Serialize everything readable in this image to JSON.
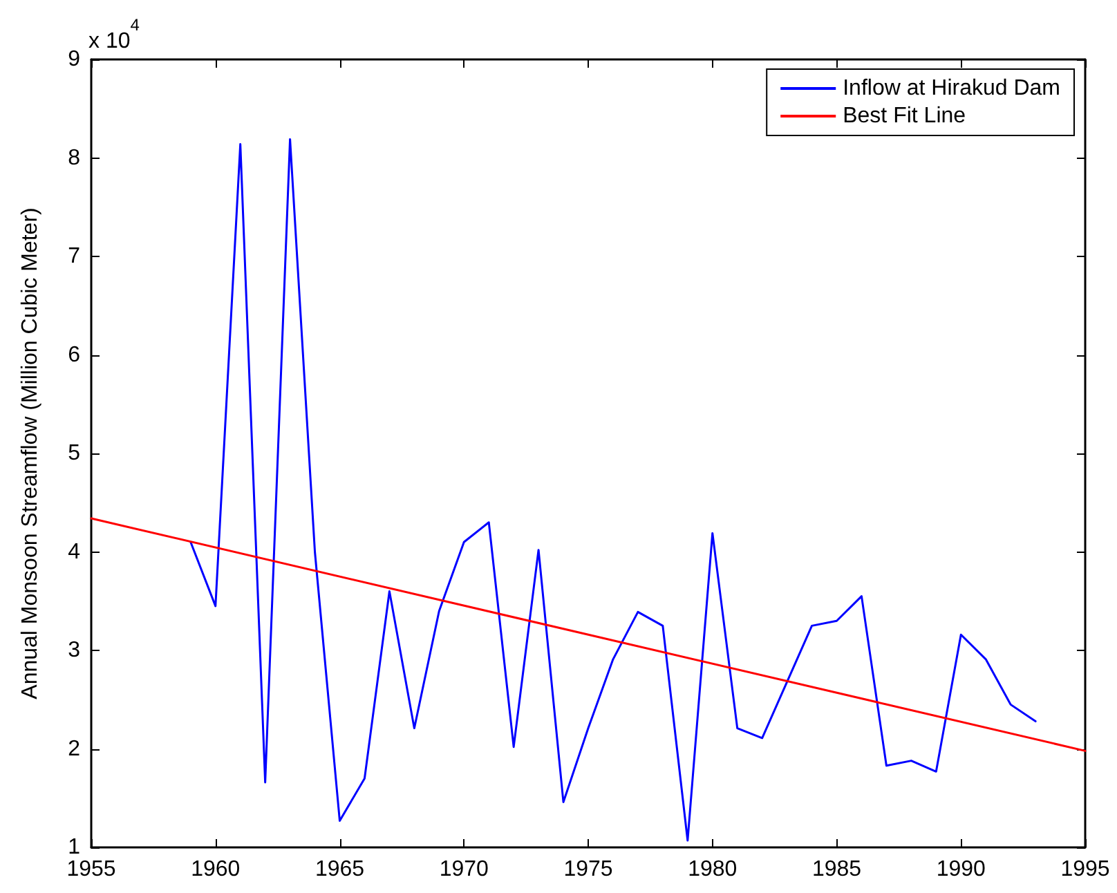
{
  "chart_data": {
    "type": "line",
    "ylabel": "Annual Monsoon Streamflow (Million Cubic Meter)",
    "annotations": [
      "x 10$^{4}$"
    ],
    "x": [
      1959,
      1960,
      1961,
      1962,
      1963,
      1964,
      1965,
      1966,
      1967,
      1968,
      1969,
      1970,
      1971,
      1972,
      1973,
      1974,
      1975,
      1976,
      1977,
      1978,
      1979,
      1980,
      1981,
      1982,
      1983,
      1984,
      1985,
      1986,
      1987,
      1988,
      1989,
      1990,
      1991,
      1992,
      1993
    ],
    "series": [
      {
        "name": "Inflow at Hirakud Dam",
        "color": "#0000ff",
        "values": [
          4.1,
          3.45,
          8.14,
          1.66,
          8.19,
          4.0,
          1.27,
          1.7,
          3.6,
          2.21,
          3.4,
          4.1,
          4.3,
          2.02,
          4.02,
          1.46,
          2.21,
          2.91,
          3.39,
          3.25,
          1.07,
          4.19,
          2.21,
          2.11,
          2.68,
          3.25,
          3.3,
          3.55,
          1.83,
          1.88,
          1.77,
          3.16,
          2.91,
          2.45,
          2.28
        ]
      },
      {
        "name": "Best Fit Line",
        "color": "#ff0000",
        "type": "line",
        "x": [
          1955,
          1995
        ],
        "values": [
          4.34,
          1.98
        ]
      }
    ],
    "xlim": [
      1955,
      1995
    ],
    "xticks": [
      1955,
      1960,
      1965,
      1970,
      1975,
      1980,
      1985,
      1990,
      1995
    ],
    "ylim": [
      1,
      9
    ],
    "yticks": [
      1,
      2,
      3,
      4,
      5,
      6,
      7,
      8,
      9
    ],
    "grid": false,
    "legend": "top right",
    "marker": "none",
    "line_style": "solid"
  }
}
